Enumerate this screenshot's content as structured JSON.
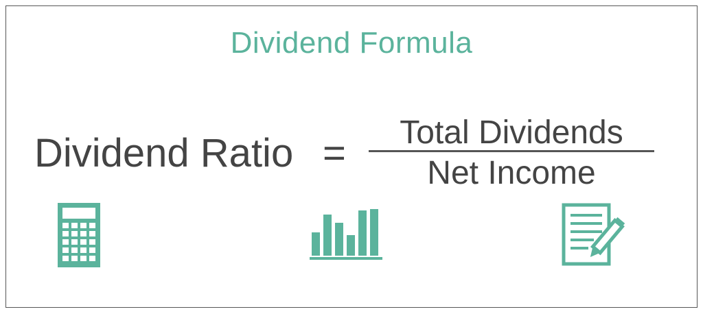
{
  "title": "Dividend Formula",
  "formula": {
    "lhs": "Dividend Ratio",
    "operator": "=",
    "numerator": "Total Dividends",
    "denominator": "Net Income"
  },
  "icons": [
    "calculator-icon",
    "bar-chart-icon",
    "document-pencil-icon"
  ],
  "colors": {
    "accent": "#5BB39C",
    "text": "#444444",
    "border": "#555555"
  }
}
